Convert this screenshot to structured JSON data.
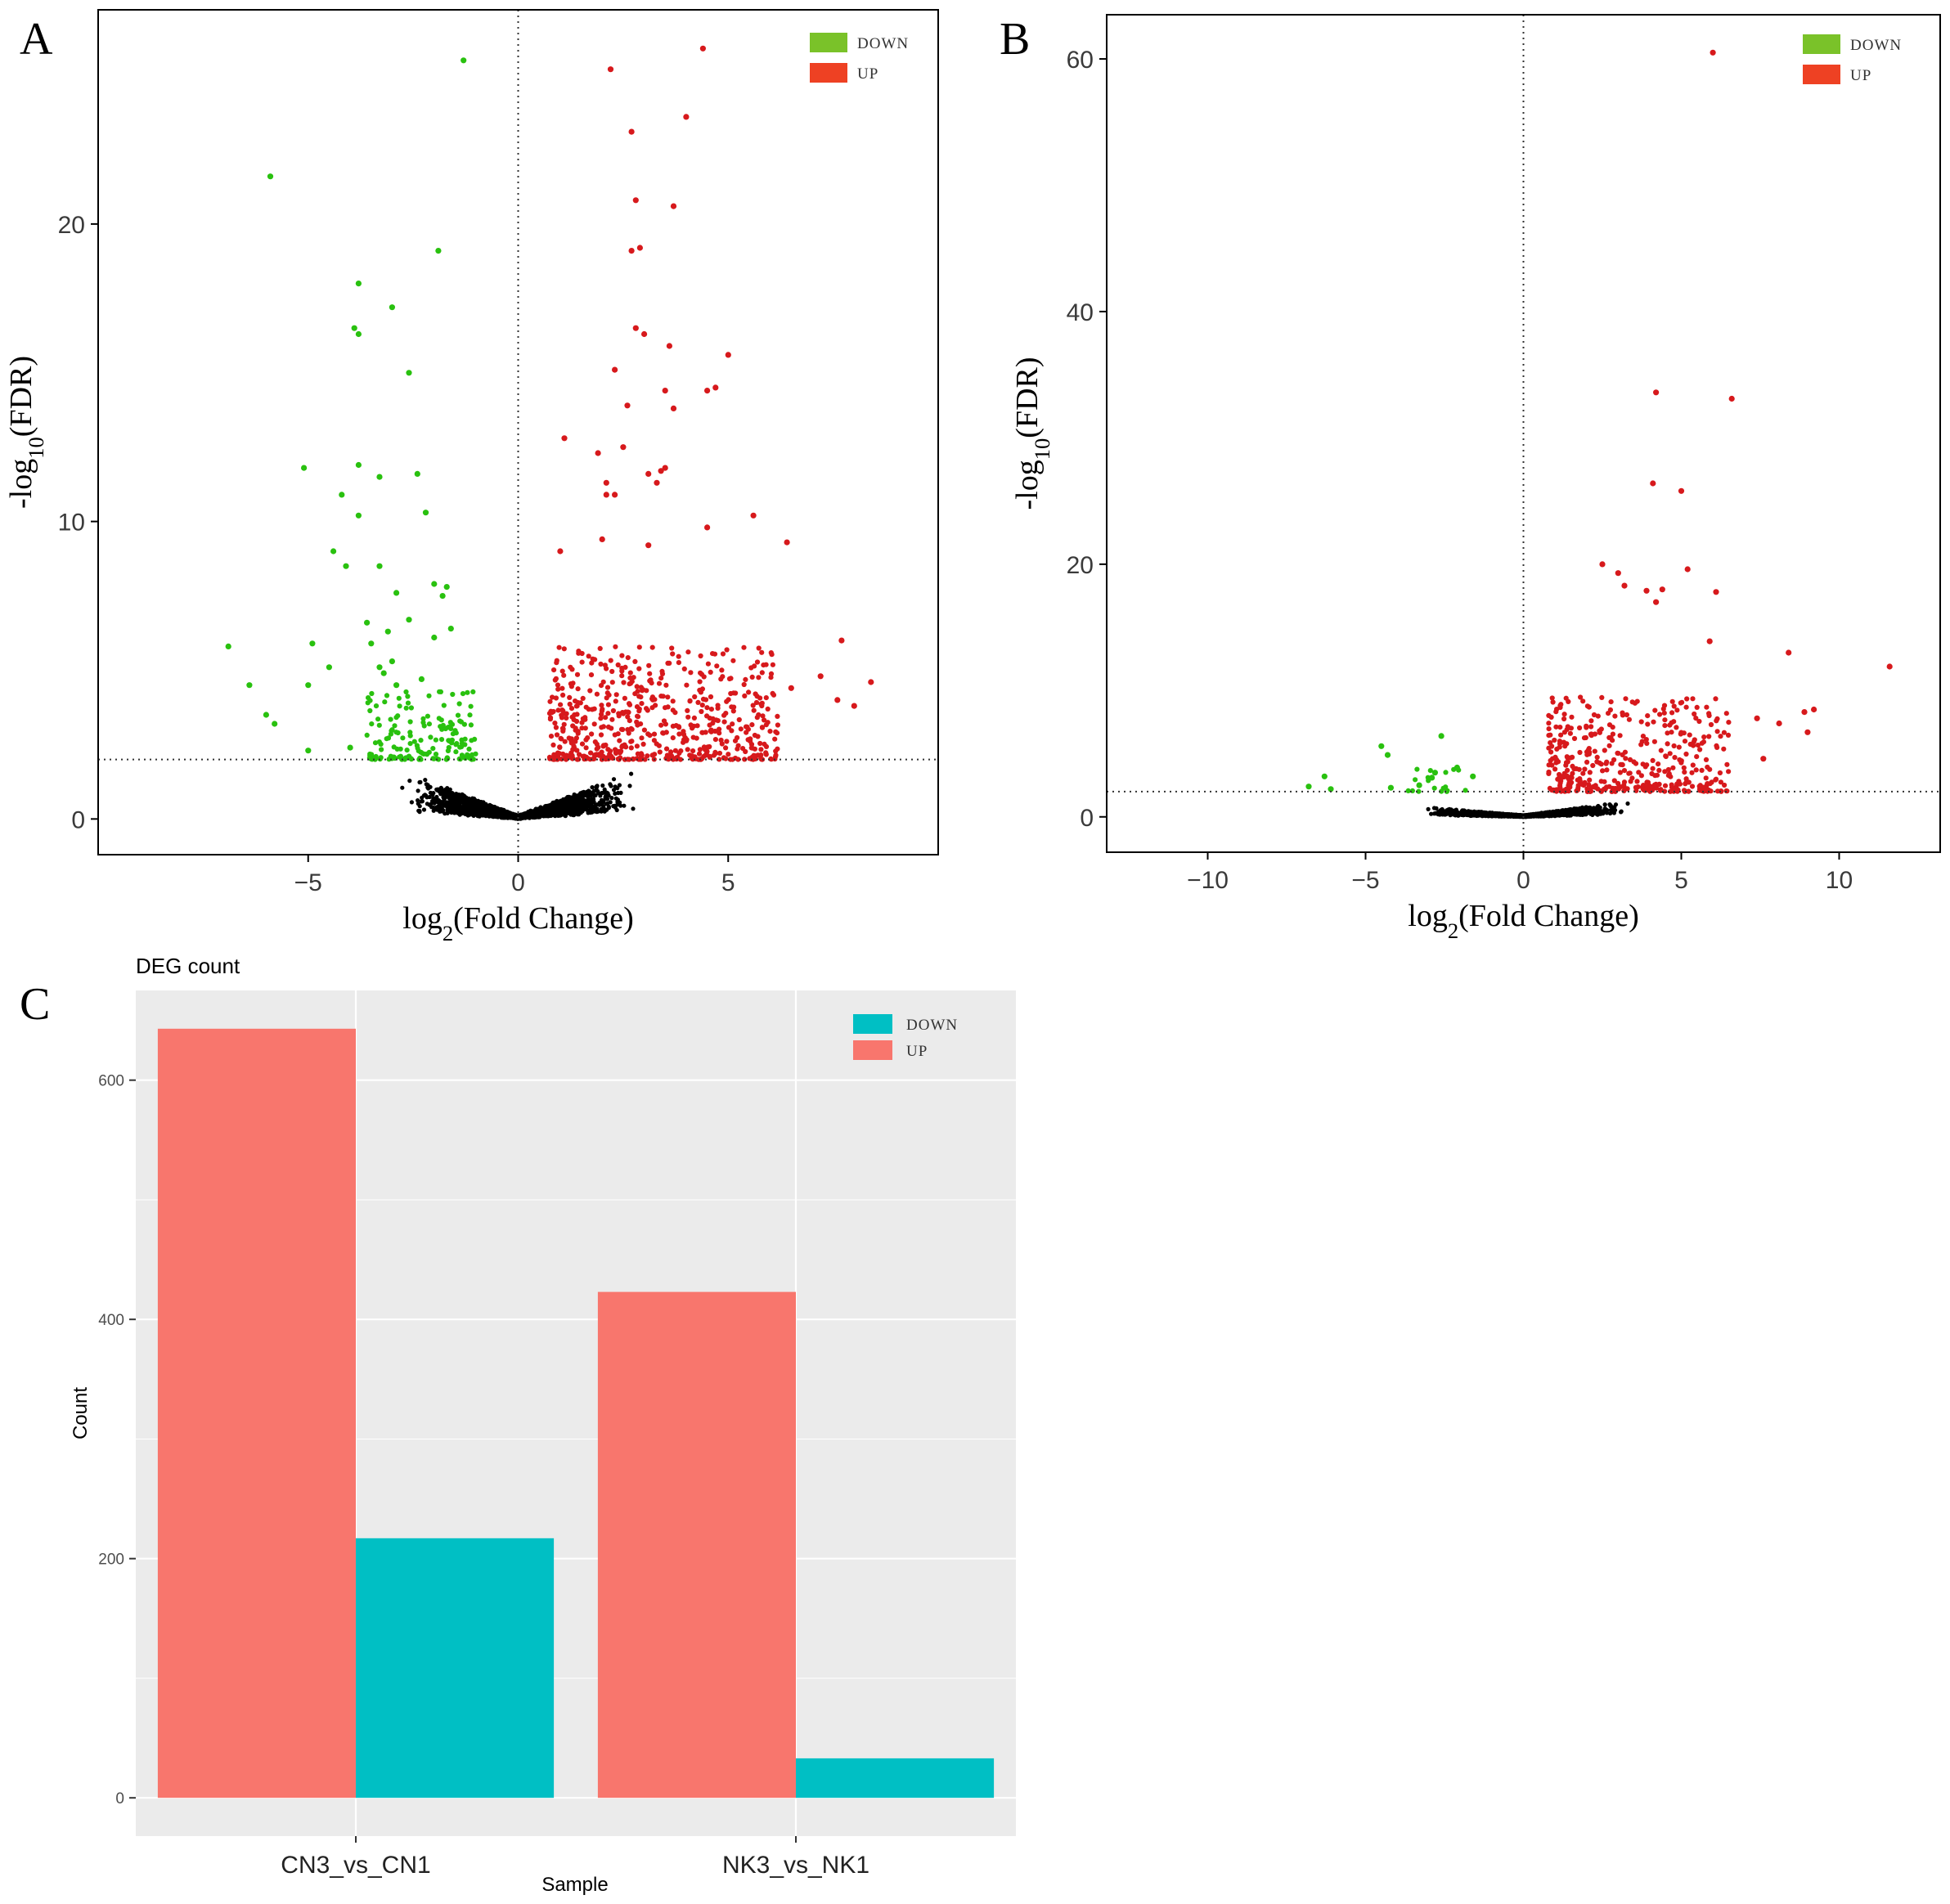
{
  "figure": {
    "panel_labels": [
      "A",
      "B",
      "C"
    ]
  },
  "colors": {
    "up_point": "#d7191c",
    "down_point": "#29c10f",
    "ns_point": "#000000",
    "legend_down_volcano": "#7ac229",
    "legend_up_volcano": "#ee4123",
    "bar_up": "#f8766d",
    "bar_down": "#00bfc4",
    "panel_bg_bar": "#ebebeb"
  },
  "chart_data": [
    {
      "id": "A",
      "type": "scatter",
      "subtype": "volcano",
      "xlabel": "log2(Fold Change)",
      "ylabel": "-log10(FDR)",
      "xlim": [
        -10,
        10
      ],
      "ylim": [
        -1.2,
        27.2
      ],
      "xticks": [
        -5,
        0,
        5
      ],
      "xtick_labels": [
        "−5",
        "0",
        "5"
      ],
      "yticks": [
        0,
        10,
        20
      ],
      "ytick_labels": [
        "0",
        "10",
        "20"
      ],
      "vline_x": 0,
      "hline_y": 2,
      "legend": [
        {
          "label": "DOWN",
          "key": "down"
        },
        {
          "label": "UP",
          "key": "up"
        }
      ],
      "legend_position": "top-right",
      "sig_points_down": [
        [
          -1.3,
          25.5
        ],
        [
          -5.9,
          21.6
        ],
        [
          -1.9,
          19.1
        ],
        [
          -3.8,
          18.0
        ],
        [
          -3.0,
          17.2
        ],
        [
          -3.9,
          16.5
        ],
        [
          -3.8,
          16.3
        ],
        [
          -2.6,
          15.0
        ],
        [
          -5.1,
          11.8
        ],
        [
          -3.8,
          11.9
        ],
        [
          -2.4,
          11.6
        ],
        [
          -3.3,
          11.5
        ],
        [
          -4.2,
          10.9
        ],
        [
          -3.8,
          10.2
        ],
        [
          -2.2,
          10.3
        ],
        [
          -4.4,
          9.0
        ],
        [
          -3.3,
          8.5
        ],
        [
          -4.1,
          8.5
        ],
        [
          -2.0,
          7.9
        ],
        [
          -1.7,
          7.8
        ],
        [
          -1.8,
          7.5
        ],
        [
          -2.9,
          7.6
        ],
        [
          -3.6,
          6.6
        ],
        [
          -2.6,
          6.7
        ],
        [
          -3.1,
          6.3
        ],
        [
          -1.6,
          6.4
        ],
        [
          -2.0,
          6.1
        ],
        [
          -4.9,
          5.9
        ],
        [
          -3.5,
          5.9
        ],
        [
          -4.5,
          5.1
        ],
        [
          -3.3,
          5.1
        ],
        [
          -3.0,
          5.3
        ],
        [
          -6.9,
          5.8
        ],
        [
          -6.4,
          4.5
        ],
        [
          -5.0,
          4.5
        ],
        [
          -3.2,
          4.9
        ],
        [
          -2.9,
          4.5
        ],
        [
          -2.3,
          4.7
        ],
        [
          -6.0,
          3.5
        ],
        [
          -5.8,
          3.2
        ],
        [
          -5.0,
          2.3
        ],
        [
          -4.0,
          2.4
        ]
      ],
      "sig_points_up": [
        [
          4.4,
          25.9
        ],
        [
          2.2,
          25.2
        ],
        [
          4.0,
          23.6
        ],
        [
          2.7,
          23.1
        ],
        [
          2.8,
          20.8
        ],
        [
          3.7,
          20.6
        ],
        [
          2.9,
          19.2
        ],
        [
          2.7,
          19.1
        ],
        [
          2.8,
          16.5
        ],
        [
          3.0,
          16.3
        ],
        [
          3.6,
          15.9
        ],
        [
          5.0,
          15.6
        ],
        [
          4.7,
          14.5
        ],
        [
          4.5,
          14.4
        ],
        [
          2.3,
          15.1
        ],
        [
          3.5,
          14.4
        ],
        [
          2.6,
          13.9
        ],
        [
          3.7,
          13.8
        ],
        [
          1.1,
          12.8
        ],
        [
          2.5,
          12.5
        ],
        [
          1.9,
          12.3
        ],
        [
          3.5,
          11.8
        ],
        [
          3.4,
          11.7
        ],
        [
          3.1,
          11.6
        ],
        [
          2.1,
          11.3
        ],
        [
          3.3,
          11.3
        ],
        [
          2.1,
          10.9
        ],
        [
          2.3,
          10.9
        ],
        [
          4.5,
          9.8
        ],
        [
          5.6,
          10.2
        ],
        [
          6.4,
          9.3
        ],
        [
          2.0,
          9.4
        ],
        [
          3.1,
          9.2
        ],
        [
          1.0,
          9.0
        ],
        [
          7.7,
          6.0
        ],
        [
          8.4,
          4.6
        ],
        [
          7.2,
          4.8
        ],
        [
          8.0,
          3.8
        ],
        [
          7.6,
          4.0
        ],
        [
          6.5,
          4.4
        ]
      ],
      "counts": {
        "down": 217,
        "up": 643
      }
    },
    {
      "id": "B",
      "type": "scatter",
      "subtype": "volcano",
      "xlabel": "log2(Fold Change)",
      "ylabel": "-log10(FDR)",
      "xlim": [
        -13.2,
        13.2
      ],
      "ylim": [
        -2.8,
        63.5
      ],
      "xticks": [
        -10,
        -5,
        0,
        5,
        10
      ],
      "xtick_labels": [
        "−10",
        "−5",
        "0",
        "5",
        "10"
      ],
      "yticks": [
        0,
        20,
        40,
        60
      ],
      "ytick_labels": [
        "0",
        "20",
        "40",
        "60"
      ],
      "vline_x": 0,
      "hline_y": 2,
      "legend": [
        {
          "label": "DOWN",
          "key": "down"
        },
        {
          "label": "UP",
          "key": "up"
        }
      ],
      "legend_position": "top-right",
      "sig_points_down": [
        [
          -2.6,
          6.4
        ],
        [
          -4.5,
          5.6
        ],
        [
          -4.3,
          4.9
        ],
        [
          -2.8,
          3.5
        ],
        [
          -2.1,
          3.9
        ],
        [
          -1.6,
          3.2
        ],
        [
          -3.3,
          2.5
        ],
        [
          -2.9,
          3.1
        ],
        [
          -6.3,
          3.2
        ],
        [
          -6.8,
          2.4
        ],
        [
          -6.1,
          2.2
        ],
        [
          -4.2,
          2.3
        ]
      ],
      "sig_points_up": [
        [
          6.0,
          60.5
        ],
        [
          4.2,
          33.6
        ],
        [
          6.6,
          33.1
        ],
        [
          4.1,
          26.4
        ],
        [
          5.0,
          25.8
        ],
        [
          2.5,
          20.0
        ],
        [
          5.2,
          19.6
        ],
        [
          3.0,
          19.3
        ],
        [
          6.1,
          17.8
        ],
        [
          3.9,
          17.9
        ],
        [
          4.4,
          18.0
        ],
        [
          3.2,
          18.3
        ],
        [
          4.2,
          17.0
        ],
        [
          11.6,
          11.9
        ],
        [
          8.4,
          13.0
        ],
        [
          5.9,
          13.9
        ],
        [
          9.2,
          8.5
        ],
        [
          8.9,
          8.3
        ],
        [
          9.0,
          6.7
        ],
        [
          7.4,
          7.8
        ],
        [
          8.1,
          7.4
        ],
        [
          7.6,
          4.6
        ]
      ],
      "counts": {
        "down": 33,
        "up": 423
      }
    },
    {
      "id": "C",
      "type": "bar",
      "title": "DEG count",
      "xlabel": "Sample",
      "ylabel": "Count",
      "categories": [
        "CN3_vs_CN1",
        "NK3_vs_NK1"
      ],
      "series": [
        {
          "name": "UP",
          "key": "up",
          "values": [
            643,
            423
          ]
        },
        {
          "name": "DOWN",
          "key": "down",
          "values": [
            217,
            33
          ]
        }
      ],
      "ylim": [
        -32,
        675
      ],
      "yticks": [
        0,
        200,
        400,
        600
      ],
      "ytick_labels": [
        "0",
        "200",
        "400",
        "600"
      ],
      "legend": [
        {
          "label": "DOWN",
          "key": "down"
        },
        {
          "label": "UP",
          "key": "up"
        }
      ],
      "legend_position": "top-right",
      "grid": true
    }
  ]
}
